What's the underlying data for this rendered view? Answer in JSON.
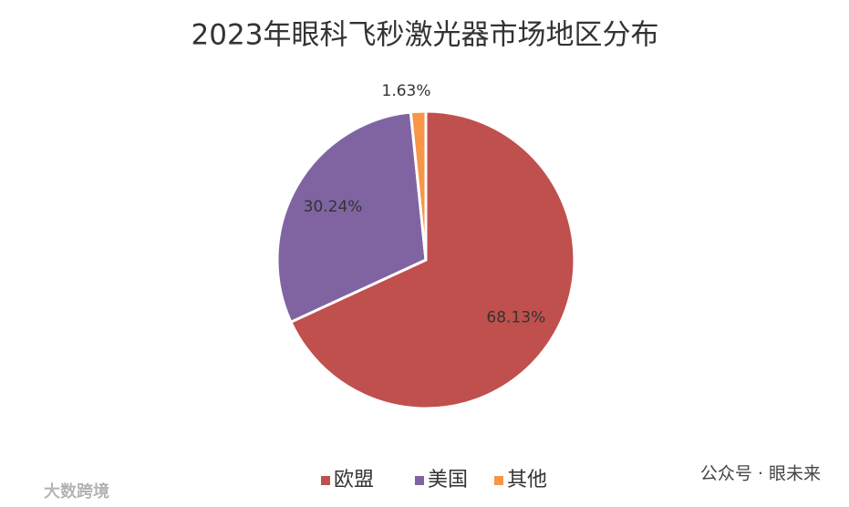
{
  "chart_data": {
    "type": "pie",
    "title": "2023年眼科飞秒激光器市场地区分布",
    "categories": [
      "欧盟",
      "美国",
      "其他"
    ],
    "values": [
      68.13,
      30.24,
      1.63
    ],
    "value_labels": [
      "68.13%",
      "30.24%",
      "1.63%"
    ],
    "colors": [
      "#c0504d",
      "#8064a2",
      "#f79646"
    ],
    "legend": "bottom",
    "annotations": [
      "大数跨境",
      "公众号 · 眼未来"
    ]
  }
}
